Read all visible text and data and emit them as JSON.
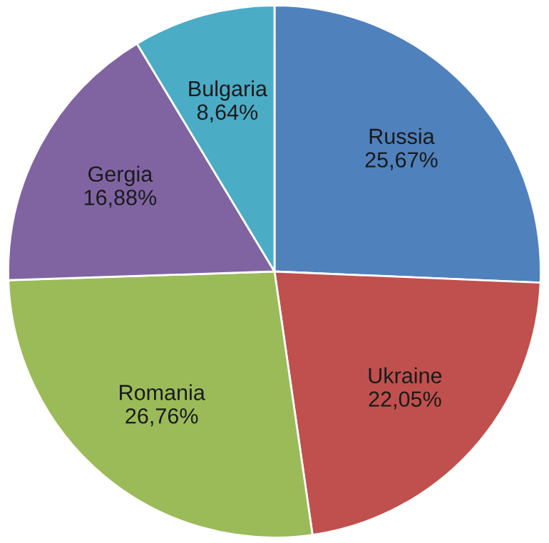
{
  "chart_data": {
    "type": "pie",
    "categories": [
      "Russia",
      "Ukraine",
      "Romania",
      "Gergia",
      "Bulgaria"
    ],
    "values": [
      25.67,
      22.05,
      26.76,
      16.88,
      8.64
    ],
    "value_labels": [
      "25,67%",
      "22,05%",
      "26,76%",
      "16,88%",
      "8,64%"
    ],
    "colors": [
      "#4f81bd",
      "#c0504d",
      "#9bbb59",
      "#8064a2",
      "#4bacc6"
    ],
    "legend": false
  }
}
